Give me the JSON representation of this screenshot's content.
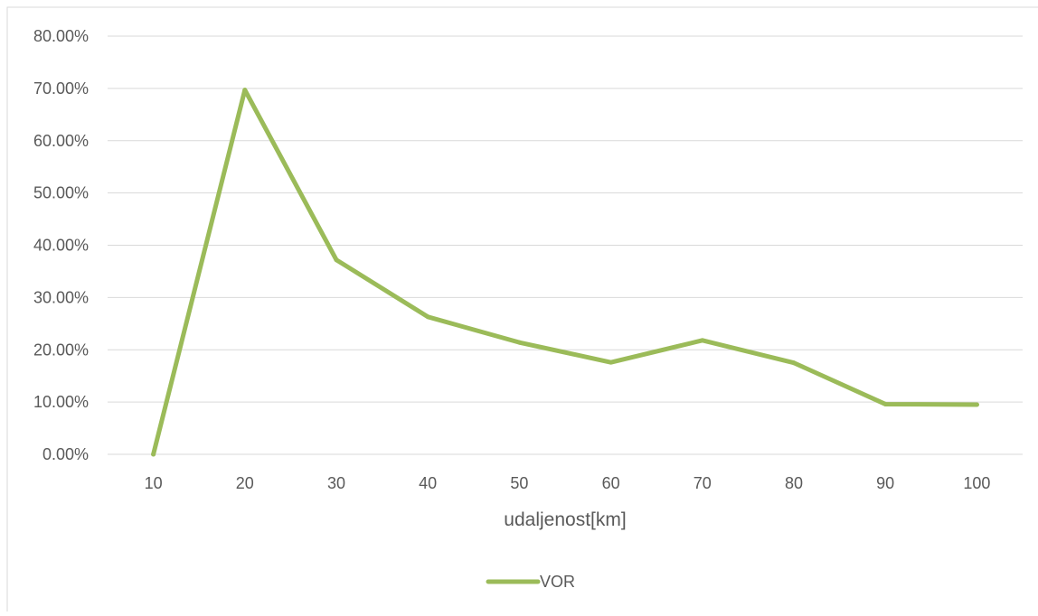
{
  "chart_data": {
    "type": "line",
    "title": "",
    "xlabel": "udaljenost[km]",
    "ylabel": "",
    "categories": [
      "10",
      "20",
      "30",
      "40",
      "50",
      "60",
      "70",
      "80",
      "90",
      "100"
    ],
    "series": [
      {
        "name": "VOR",
        "values": [
          0.0,
          69.7,
          37.2,
          26.3,
          21.4,
          17.6,
          21.8,
          17.5,
          9.6,
          9.5
        ],
        "color": "#9BBB59"
      }
    ],
    "ylim": [
      0,
      80
    ],
    "yticks": [
      "0.00%",
      "10.00%",
      "20.00%",
      "30.00%",
      "40.00%",
      "50.00%",
      "60.00%",
      "70.00%",
      "80.00%"
    ],
    "grid": true,
    "legend": "bottom",
    "colors": {
      "gridline": "#D9D9D9",
      "text": "#595959",
      "frame": "#D9D9D9"
    }
  }
}
